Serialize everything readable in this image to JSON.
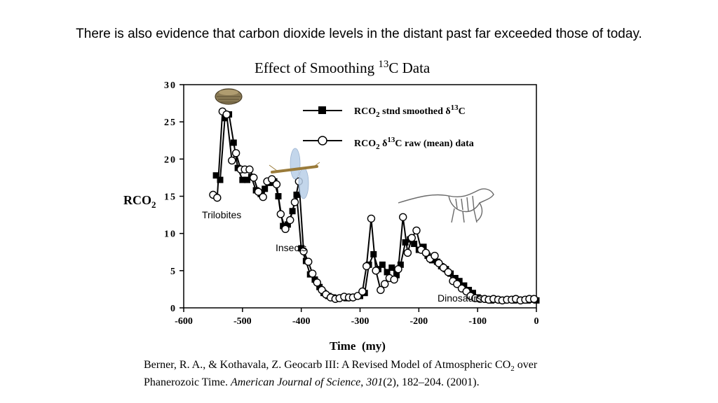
{
  "heading": "There is also evidence that carbon dioxide levels in the distant past far exceeded those of today.",
  "chart_data": {
    "type": "line",
    "title": "Effect of Smoothing 13C Data",
    "title_parts": {
      "before": "Effect of Smoothing ",
      "sup": "13",
      "after": "C Data"
    },
    "xlabel": "Time  (my)",
    "ylabel": "RCO2",
    "ylabel_parts": {
      "main": "RCO",
      "sub": "2"
    },
    "xlim": [
      -600,
      0
    ],
    "ylim": [
      0,
      30
    ],
    "xticks": [
      -600,
      -500,
      -400,
      -300,
      -200,
      -100,
      0
    ],
    "xtick_labels": [
      "-600",
      "-500",
      "-400",
      "-300",
      "-200",
      "-100",
      "0"
    ],
    "yticks": [
      0,
      5,
      10,
      15,
      20,
      25,
      30
    ],
    "ytick_labels": [
      "0",
      "5",
      "10",
      "15",
      "20",
      "25",
      "30"
    ],
    "grid": false,
    "legend_position": "top-right",
    "series": [
      {
        "name": "RCO2 stnd smoothed δ13C",
        "legend_parts": {
          "a": "RCO",
          "sub": "2",
          "b": " stnd smoothed ",
          "delta": "δ",
          "sup": "13",
          "c": "C"
        },
        "marker": "filled-square",
        "x": [
          -545,
          -538,
          -530,
          -523,
          -515,
          -508,
          -500,
          -492,
          -485,
          -477,
          -469,
          -462,
          -454,
          -446,
          -439,
          -431,
          -423,
          -415,
          -408,
          -400,
          -392,
          -385,
          -377,
          -369,
          -362,
          -354,
          -346,
          -338,
          -331,
          -323,
          -315,
          -308,
          -300,
          -292,
          -285,
          -277,
          -269,
          -262,
          -254,
          -246,
          -238,
          -231,
          -223,
          -215,
          -208,
          -200,
          -192,
          -185,
          -177,
          -169,
          -162,
          -154,
          -146,
          -138,
          -131,
          -123,
          -115,
          -108,
          -100,
          -92,
          -85,
          -77,
          -69,
          -62,
          -54,
          -46,
          -38,
          -31,
          -23,
          -15,
          -8,
          0
        ],
        "y": [
          17.8,
          17.2,
          25.5,
          26.0,
          22.2,
          18.8,
          17.2,
          17.2,
          17.6,
          15.8,
          15.3,
          16.0,
          16.8,
          17.0,
          15.0,
          11.0,
          11.2,
          13.0,
          15.2,
          8.0,
          6.3,
          4.5,
          3.8,
          2.8,
          2.0,
          1.6,
          1.4,
          1.3,
          1.4,
          1.3,
          1.4,
          1.5,
          1.6,
          2.0,
          5.8,
          7.2,
          5.2,
          5.8,
          4.8,
          5.4,
          4.4,
          5.8,
          8.8,
          9.2,
          8.6,
          7.8,
          8.2,
          7.0,
          6.4,
          6.2,
          5.6,
          5.2,
          4.6,
          4.0,
          3.6,
          3.0,
          2.4,
          2.0,
          1.4,
          1.2,
          1.1,
          1.0,
          1.1,
          1.0,
          1.0,
          1.1,
          1.0,
          1.1,
          1.0,
          1.0,
          1.1,
          1.0
        ]
      },
      {
        "name": "RCO2 δ13C raw (mean) data",
        "legend_parts": {
          "a": "RCO",
          "sub": "2",
          "b": " ",
          "delta": "δ",
          "sup": "13",
          "c": "C raw (mean) data"
        },
        "marker": "open-circle",
        "x": [
          -550,
          -543,
          -534,
          -527,
          -518,
          -511,
          -503,
          -496,
          -488,
          -481,
          -473,
          -465,
          -458,
          -450,
          -442,
          -435,
          -427,
          -419,
          -411,
          -404,
          -396,
          -388,
          -381,
          -373,
          -365,
          -358,
          -350,
          -342,
          -335,
          -327,
          -319,
          -312,
          -304,
          -296,
          -289,
          -281,
          -273,
          -265,
          -258,
          -250,
          -242,
          -235,
          -227,
          -219,
          -212,
          -204,
          -196,
          -188,
          -181,
          -173,
          -166,
          -158,
          -150,
          -142,
          -135,
          -127,
          -119,
          -112,
          -104,
          -96,
          -88,
          -81,
          -73,
          -65,
          -58,
          -50,
          -42,
          -35,
          -27,
          -19,
          -12,
          -4
        ],
        "y": [
          15.2,
          14.8,
          26.4,
          26.0,
          19.8,
          20.8,
          18.6,
          18.6,
          18.6,
          17.5,
          15.6,
          14.9,
          17.0,
          17.3,
          16.6,
          12.6,
          10.6,
          11.8,
          14.2,
          17.0,
          7.6,
          6.2,
          4.6,
          3.4,
          2.4,
          1.8,
          1.4,
          1.2,
          1.3,
          1.5,
          1.4,
          1.4,
          1.6,
          2.2,
          5.6,
          12.0,
          5.0,
          2.4,
          3.2,
          4.0,
          3.8,
          5.2,
          12.2,
          7.4,
          9.4,
          10.4,
          7.8,
          7.4,
          6.6,
          7.0,
          6.0,
          5.4,
          4.8,
          3.6,
          3.2,
          2.6,
          2.2,
          1.6,
          1.3,
          1.2,
          1.2,
          1.1,
          1.2,
          1.1,
          1.0,
          1.1,
          1.1,
          1.2,
          1.0,
          1.1,
          1.2,
          1.2
        ]
      }
    ],
    "annotations": {
      "trilobites": "Trilobites",
      "insects": "Insects",
      "dinosaurs": "Dinosaurs"
    }
  },
  "citation": {
    "line1_a": "Berner, R. A., & Kothavala, Z. Geocarb III: A Revised Model of Atmospheric CO",
    "line1_sub": "2",
    "line1_b": " over",
    "line2_a": "Phanerozoic Time. ",
    "line2_journal": "American Journal of Science",
    "line2_b": ", ",
    "line2_volume": "301",
    "line2_c": "(2), 182–204.  (2001)."
  },
  "colors": {
    "ink": "#000000",
    "background": "#ffffff",
    "fossil": "#8a7a55",
    "insect_wing": "#b9cfe8"
  }
}
